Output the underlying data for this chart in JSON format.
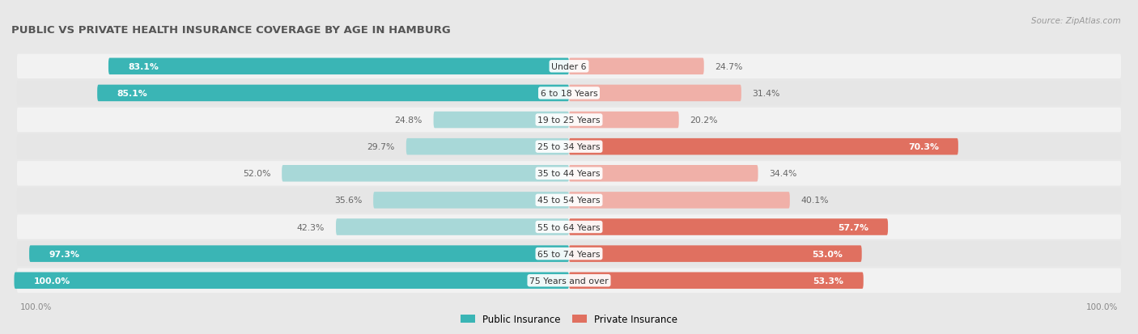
{
  "title": "PUBLIC VS PRIVATE HEALTH INSURANCE COVERAGE BY AGE IN HAMBURG",
  "source": "Source: ZipAtlas.com",
  "categories": [
    "Under 6",
    "6 to 18 Years",
    "19 to 25 Years",
    "25 to 34 Years",
    "35 to 44 Years",
    "45 to 54 Years",
    "55 to 64 Years",
    "65 to 74 Years",
    "75 Years and over"
  ],
  "public_values": [
    83.1,
    85.1,
    24.8,
    29.7,
    52.0,
    35.6,
    42.3,
    97.3,
    100.0
  ],
  "private_values": [
    24.7,
    31.4,
    20.2,
    70.3,
    34.4,
    40.1,
    57.7,
    53.0,
    53.3
  ],
  "public_color_strong": "#3ab5b5",
  "public_color_light": "#a8d8d8",
  "private_color_strong": "#e07060",
  "private_color_light": "#f0b0a8",
  "row_colors": [
    "#f2f2f2",
    "#e6e6e6"
  ],
  "bg_color": "#e8e8e8",
  "title_color": "#555555",
  "source_color": "#999999",
  "label_color_inside": "#ffffff",
  "label_color_outside": "#666666",
  "bottom_label_color": "#888888",
  "legend_public": "Public Insurance",
  "legend_private": "Private Insurance",
  "pub_threshold": 60,
  "priv_threshold": 50
}
